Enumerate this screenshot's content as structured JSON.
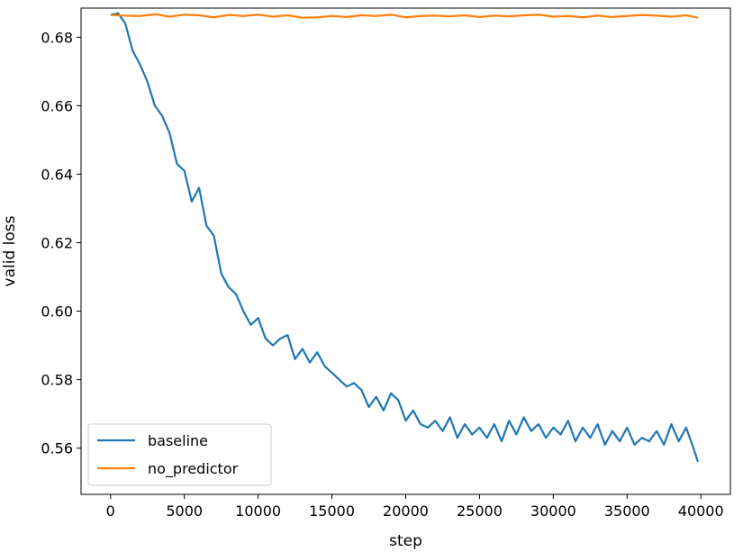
{
  "chart_data": {
    "type": "line",
    "xlabel": "step",
    "ylabel": "valid loss",
    "xlim": [
      -2000,
      42000
    ],
    "ylim": [
      0.5465,
      0.6885
    ],
    "xticks": [
      0,
      5000,
      10000,
      15000,
      20000,
      25000,
      30000,
      35000,
      40000
    ],
    "yticks": [
      0.56,
      0.58,
      0.6,
      0.62,
      0.64,
      0.66,
      0.68
    ],
    "grid": false,
    "legend_position": "lower-left",
    "series": [
      {
        "name": "baseline",
        "color": "#1f77b4",
        "x": [
          0,
          500,
          1000,
          1500,
          2000,
          2500,
          3000,
          3500,
          4000,
          4500,
          5000,
          5500,
          6000,
          6500,
          7000,
          7500,
          8000,
          8500,
          9000,
          9500,
          10000,
          10500,
          11000,
          11500,
          12000,
          12500,
          13000,
          13500,
          14000,
          14500,
          15000,
          15500,
          16000,
          16500,
          17000,
          17500,
          18000,
          18500,
          19000,
          19500,
          20000,
          20500,
          21000,
          21500,
          22000,
          22500,
          23000,
          23500,
          24000,
          24500,
          25000,
          25500,
          26000,
          26500,
          27000,
          27500,
          28000,
          28500,
          29000,
          29500,
          30000,
          30500,
          31000,
          31500,
          32000,
          32500,
          33000,
          33500,
          34000,
          34500,
          35000,
          35500,
          36000,
          36500,
          37000,
          37500,
          38000,
          38500,
          39000,
          39500,
          39800
        ],
        "y": [
          0.6865,
          0.687,
          0.684,
          0.676,
          0.672,
          0.667,
          0.66,
          0.657,
          0.652,
          0.643,
          0.641,
          0.632,
          0.636,
          0.625,
          0.622,
          0.611,
          0.607,
          0.605,
          0.6,
          0.596,
          0.598,
          0.592,
          0.59,
          0.592,
          0.593,
          0.586,
          0.589,
          0.585,
          0.588,
          0.584,
          0.582,
          0.58,
          0.578,
          0.579,
          0.577,
          0.572,
          0.575,
          0.571,
          0.576,
          0.574,
          0.568,
          0.571,
          0.567,
          0.566,
          0.568,
          0.565,
          0.569,
          0.563,
          0.567,
          0.564,
          0.566,
          0.563,
          0.567,
          0.562,
          0.568,
          0.564,
          0.569,
          0.565,
          0.567,
          0.563,
          0.566,
          0.564,
          0.568,
          0.562,
          0.566,
          0.563,
          0.567,
          0.561,
          0.565,
          0.562,
          0.566,
          0.561,
          0.563,
          0.562,
          0.565,
          0.561,
          0.567,
          0.562,
          0.566,
          0.56,
          0.556
        ]
      },
      {
        "name": "no_predictor",
        "color": "#ff7f0e",
        "x": [
          0,
          1000,
          2000,
          3000,
          4000,
          5000,
          6000,
          7000,
          8000,
          9000,
          10000,
          11000,
          12000,
          13000,
          14000,
          15000,
          16000,
          17000,
          18000,
          19000,
          20000,
          21000,
          22000,
          23000,
          24000,
          25000,
          26000,
          27000,
          28000,
          29000,
          30000,
          31000,
          32000,
          33000,
          34000,
          35000,
          36000,
          37000,
          38000,
          39000,
          39800
        ],
        "y": [
          0.6865,
          0.6863,
          0.6862,
          0.6867,
          0.686,
          0.6866,
          0.6864,
          0.6858,
          0.6865,
          0.6862,
          0.6866,
          0.686,
          0.6864,
          0.6857,
          0.6858,
          0.6862,
          0.6859,
          0.6864,
          0.6862,
          0.6866,
          0.6858,
          0.6862,
          0.6863,
          0.6861,
          0.6864,
          0.6859,
          0.6863,
          0.6861,
          0.6864,
          0.6866,
          0.686,
          0.6862,
          0.6858,
          0.6863,
          0.6859,
          0.6862,
          0.6865,
          0.6863,
          0.686,
          0.6864,
          0.6857
        ]
      }
    ]
  }
}
